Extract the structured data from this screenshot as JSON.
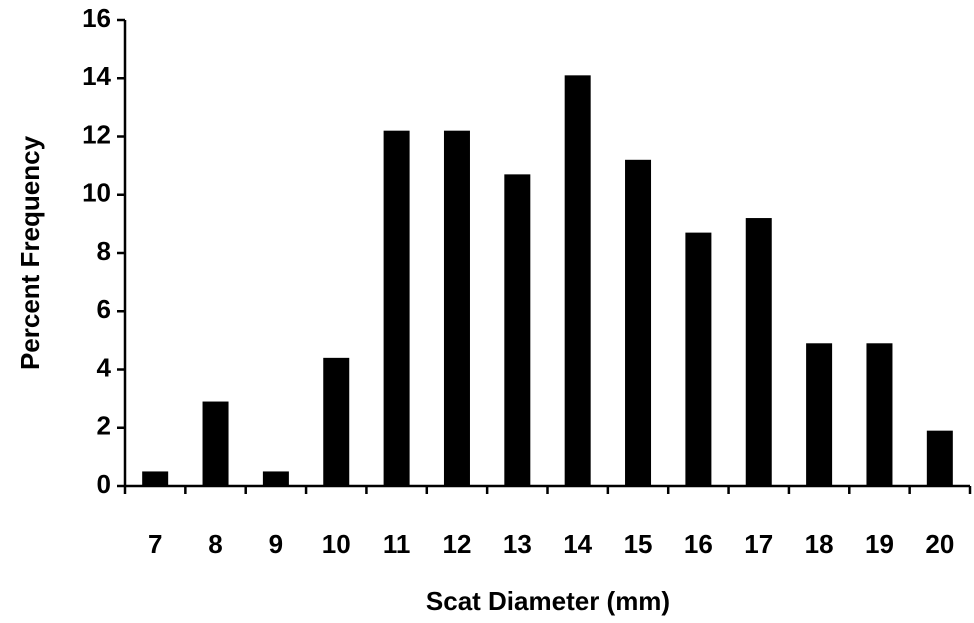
{
  "chart_data": {
    "type": "bar",
    "x_label": "Scat Diameter (mm)",
    "y_label": "Percent Frequency",
    "categories": [
      "7",
      "8",
      "9",
      "10",
      "11",
      "12",
      "13",
      "14",
      "15",
      "16",
      "17",
      "18",
      "19",
      "20"
    ],
    "values": [
      0.5,
      2.9,
      0.5,
      4.4,
      12.2,
      12.2,
      10.7,
      14.1,
      11.2,
      8.7,
      9.2,
      4.9,
      4.9,
      1.9
    ],
    "color": "#000000",
    "ylim": [
      0,
      16
    ],
    "yticks": [
      0,
      2,
      4,
      6,
      8,
      10,
      12,
      14,
      16
    ],
    "grid": false
  }
}
